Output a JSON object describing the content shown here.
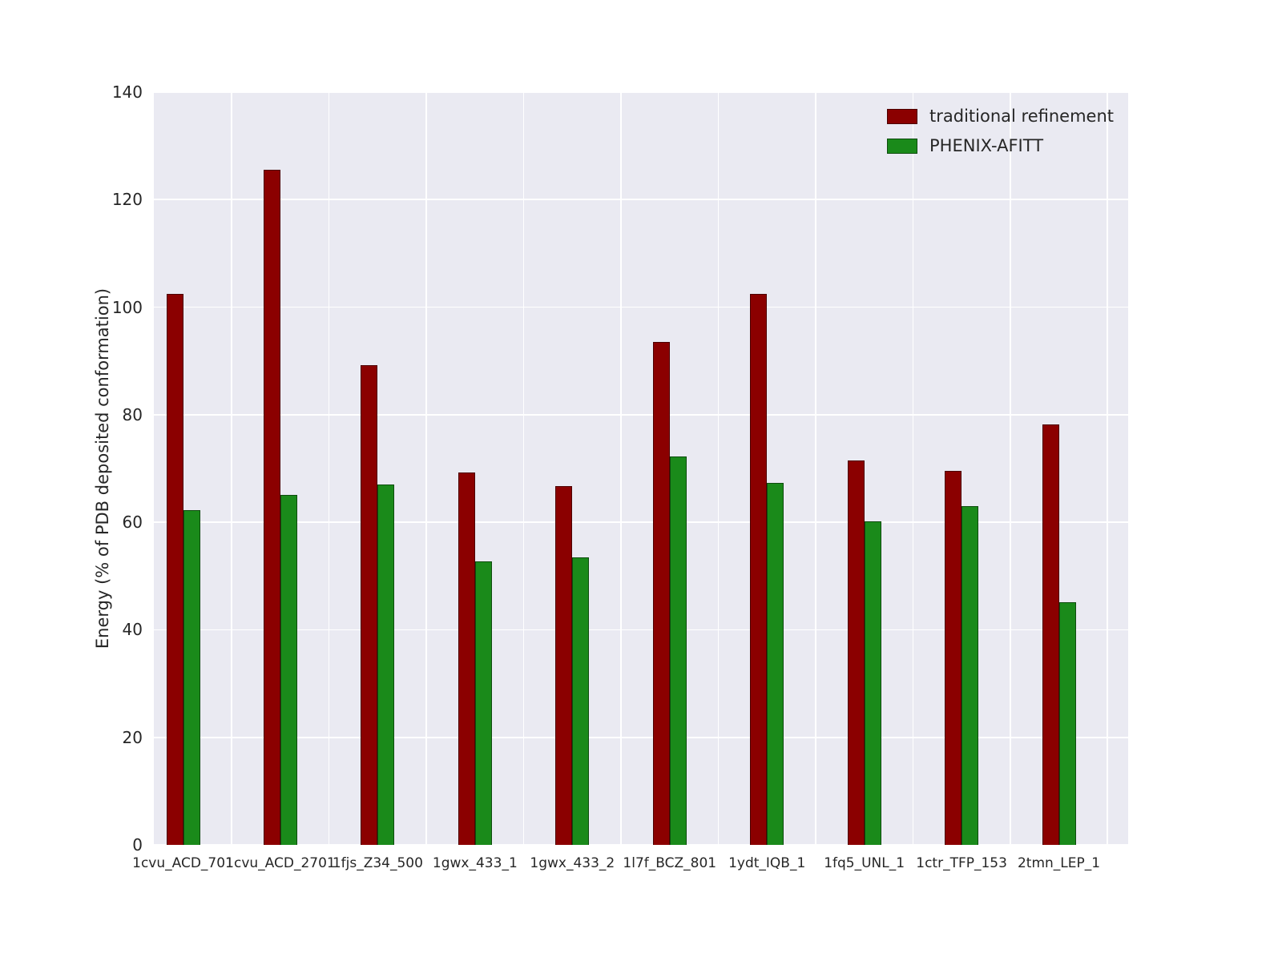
{
  "chart_data": {
    "type": "bar",
    "title": "",
    "xlabel": "",
    "ylabel": "Energy (% of PDB deposited conformation)",
    "ylim": [
      0,
      140
    ],
    "yticks": [
      0,
      20,
      40,
      60,
      80,
      100,
      120,
      140
    ],
    "grid": true,
    "legend_position": "upper right",
    "categories": [
      "1cvu_ACD_701",
      "1cvu_ACD_2701",
      "1fjs_Z34_500",
      "1gwx_433_1",
      "1gwx_433_2",
      "1l7f_BCZ_801",
      "1ydt_IQB_1",
      "1fq5_UNL_1",
      "1ctr_TFP_153",
      "2tmn_LEP_1"
    ],
    "series": [
      {
        "name": "traditional refinement",
        "color": "#8b0000",
        "values": [
          102.5,
          125.5,
          89.2,
          69.3,
          66.7,
          93.5,
          102.5,
          71.5,
          69.5,
          78.2
        ]
      },
      {
        "name": "PHENIX-AFITT",
        "color": "#1a8a1a",
        "values": [
          62.3,
          65.1,
          67.0,
          52.7,
          53.4,
          72.3,
          67.3,
          60.1,
          63.0,
          45.2
        ]
      }
    ],
    "colors": {
      "plot_background": "#eaeaf2",
      "gridline": "#ffffff",
      "text": "#262626"
    }
  }
}
